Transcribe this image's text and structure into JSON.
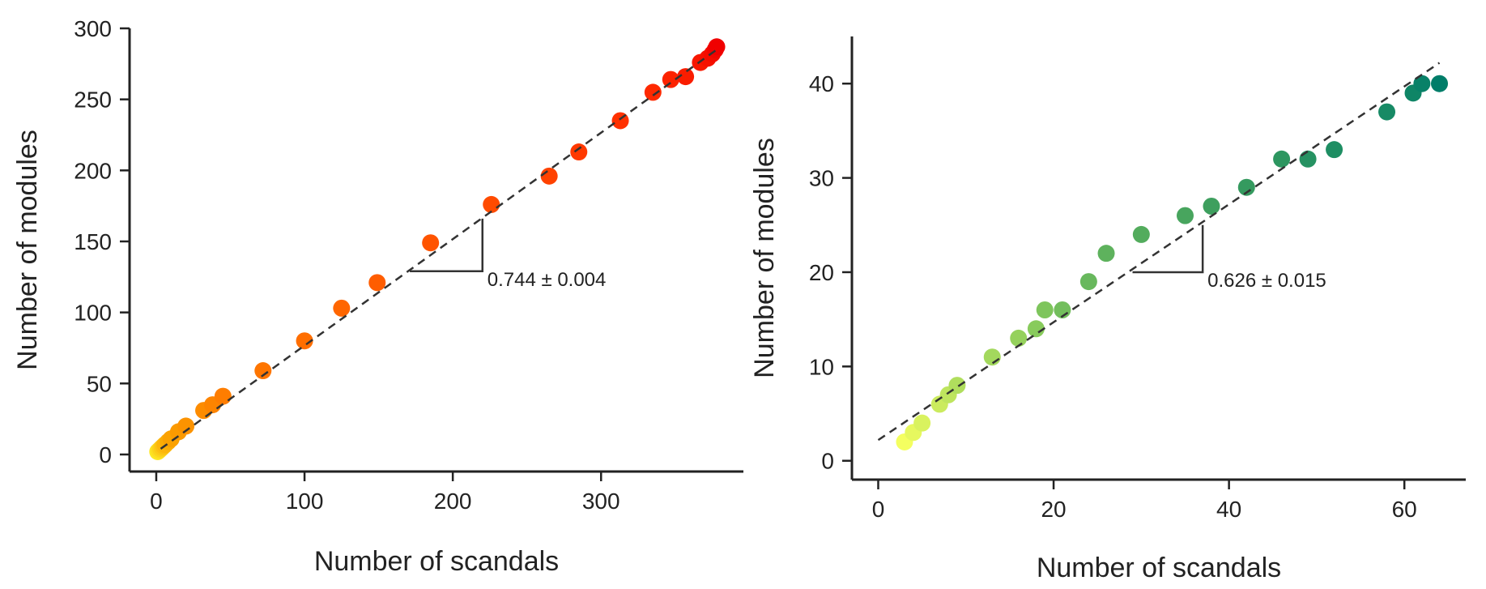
{
  "chart_data": [
    {
      "type": "scatter",
      "xlabel": "Number of scandals",
      "ylabel": "Number of modules",
      "xlim": [
        -18,
        396
      ],
      "ylim": [
        -12,
        300
      ],
      "xticks": [
        0,
        100,
        200,
        300
      ],
      "yticks": [
        0,
        50,
        100,
        150,
        200,
        250,
        300
      ],
      "grid": false,
      "color_scale": [
        "#fde725",
        "#fba000",
        "#ff6a00",
        "#ff2a00",
        "#f00000"
      ],
      "points": {
        "x": [
          1,
          2,
          3,
          4,
          5,
          6,
          8,
          10,
          15,
          20,
          32,
          38,
          45,
          72,
          100,
          125,
          149,
          185,
          226,
          265,
          285,
          313,
          335,
          347,
          357,
          367,
          372,
          375,
          377,
          378
        ],
        "y": [
          2,
          3,
          4,
          5,
          6,
          7,
          9,
          11,
          16,
          20,
          31,
          35,
          41,
          59,
          80,
          103,
          121,
          149,
          176,
          196,
          213,
          235,
          255,
          264,
          266,
          276,
          279,
          282,
          285,
          287
        ]
      },
      "fit_line": {
        "x": [
          3,
          378
        ],
        "y": [
          4,
          285
        ],
        "style": "dashed"
      },
      "slope_annotation": "0.744 ± 0.004",
      "slope_triangle": {
        "x0": 171,
        "x1": 220,
        "y0": 129,
        "y1": 166
      }
    },
    {
      "type": "scatter",
      "xlabel": "Number of scandals",
      "ylabel": "Number of modules",
      "xlim": [
        -3,
        67
      ],
      "ylim": [
        -2,
        45
      ],
      "xticks": [
        0,
        20,
        40,
        60
      ],
      "yticks": [
        0,
        10,
        20,
        30,
        40
      ],
      "grid": false,
      "color_scale": [
        "#f4ff60",
        "#8ccd5c",
        "#3a9d5e",
        "#007d69"
      ],
      "points": {
        "x": [
          3,
          4,
          5,
          7,
          8,
          9,
          13,
          16,
          18,
          19,
          21,
          24,
          26,
          30,
          35,
          38,
          42,
          46,
          49,
          52,
          58,
          61,
          62,
          64
        ],
        "y": [
          2,
          3,
          4,
          6,
          7,
          8,
          11,
          13,
          14,
          16,
          16,
          19,
          22,
          24,
          26,
          27,
          29,
          32,
          32,
          33,
          37,
          39,
          40,
          40
        ]
      },
      "fit_line": {
        "x": [
          0,
          64
        ],
        "y": [
          2.2,
          42.2
        ],
        "style": "dashed"
      },
      "slope_annotation": "0.626 ± 0.015",
      "slope_triangle": {
        "x0": 29,
        "x1": 37,
        "y0": 20,
        "y1": 25
      }
    }
  ]
}
